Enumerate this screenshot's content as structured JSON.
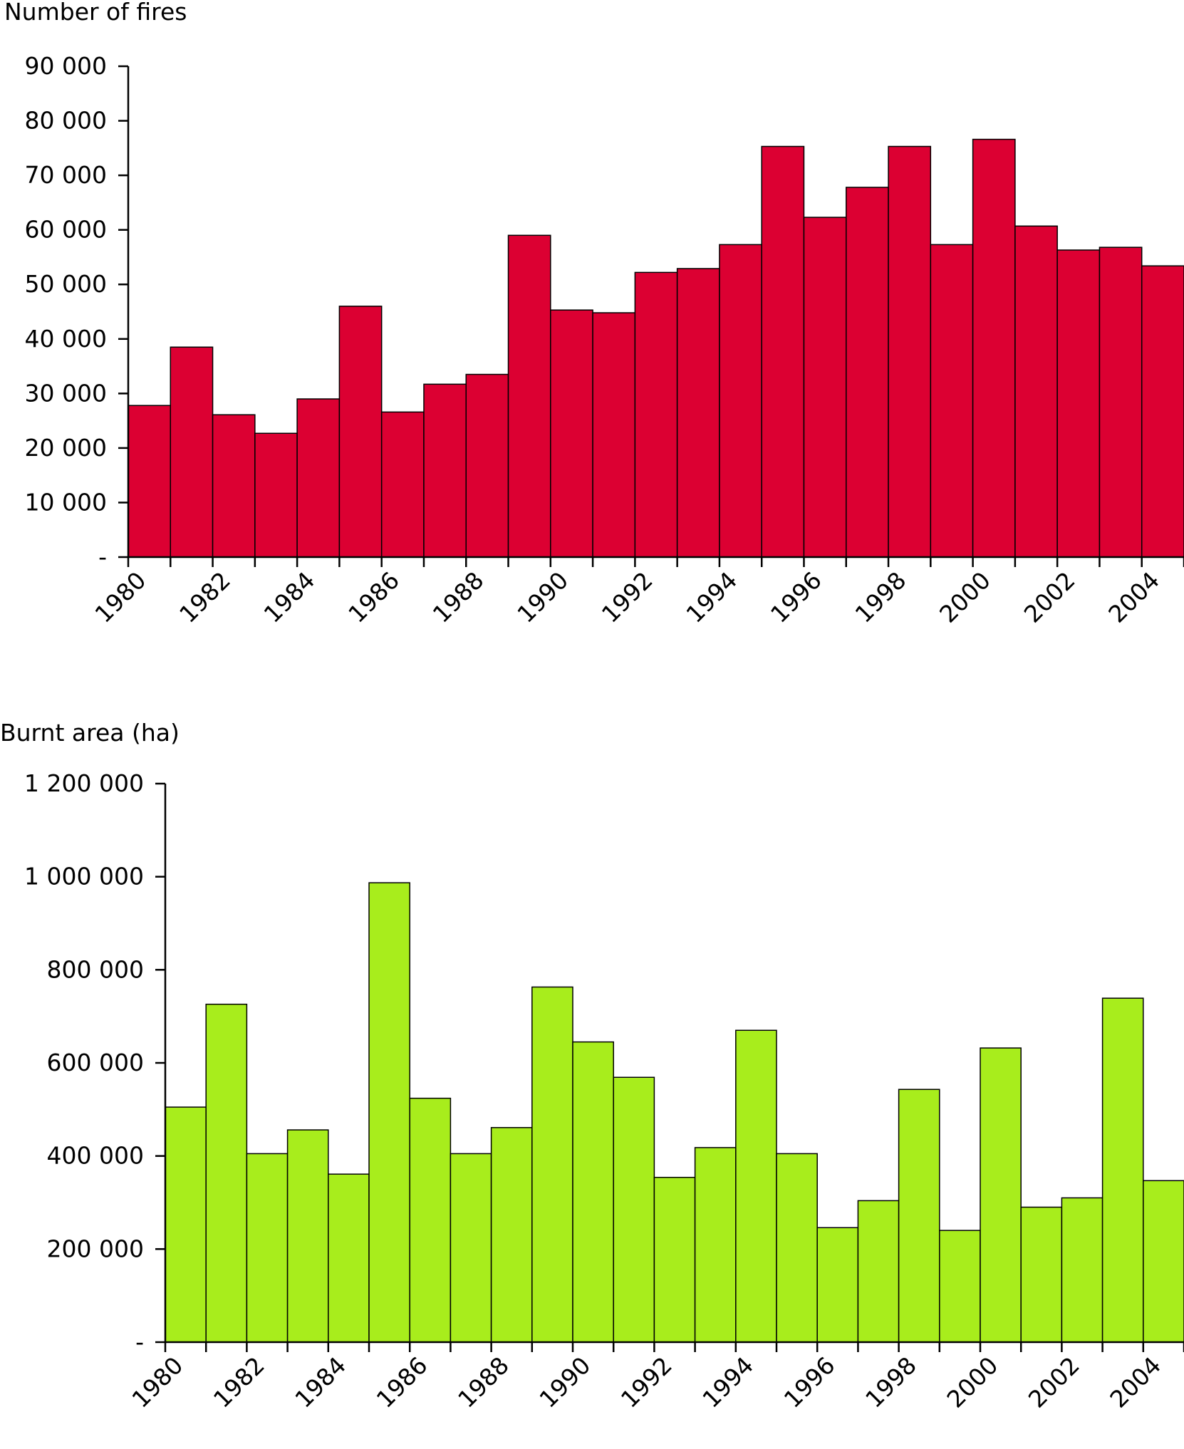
{
  "chart_data": [
    {
      "type": "bar",
      "ylabel": "Number of fires",
      "xlabel": "",
      "categories": [
        "1980",
        "1981",
        "1982",
        "1983",
        "1984",
        "1985",
        "1986",
        "1987",
        "1988",
        "1989",
        "1990",
        "1991",
        "1992",
        "1993",
        "1994",
        "1995",
        "1996",
        "1997",
        "1998",
        "1999",
        "2000",
        "2001",
        "2002",
        "2003",
        "2004"
      ],
      "x_tick_labels": [
        "1980",
        "1982",
        "1984",
        "1986",
        "1988",
        "1990",
        "1992",
        "1994",
        "1996",
        "1998",
        "2000",
        "2002",
        "2004"
      ],
      "values": [
        27800,
        38500,
        26100,
        22700,
        29000,
        46000,
        26600,
        31700,
        33500,
        59000,
        45300,
        44800,
        52200,
        52900,
        57300,
        75300,
        62300,
        67800,
        75300,
        57300,
        76600,
        60700,
        56300,
        56800,
        53400
      ],
      "ylim": [
        0,
        90000
      ],
      "y_ticks": [
        0,
        10000,
        20000,
        30000,
        40000,
        50000,
        60000,
        70000,
        80000,
        90000
      ],
      "y_tick_labels": [
        "-",
        "10 000",
        "20 000",
        "30 000",
        "40 000",
        "50 000",
        "60 000",
        "70 000",
        "80 000",
        "90 000"
      ],
      "bar_color": "#dc0032",
      "grid": false
    },
    {
      "type": "bar",
      "ylabel": "Burnt area (ha)",
      "xlabel": "",
      "categories": [
        "1980",
        "1981",
        "1982",
        "1983",
        "1984",
        "1985",
        "1986",
        "1987",
        "1988",
        "1989",
        "1990",
        "1991",
        "1992",
        "1993",
        "1994",
        "1995",
        "1996",
        "1997",
        "1998",
        "1999",
        "2000",
        "2001",
        "2002",
        "2003",
        "2004"
      ],
      "x_tick_labels": [
        "1980",
        "1982",
        "1984",
        "1986",
        "1988",
        "1990",
        "1992",
        "1994",
        "1996",
        "1998",
        "2000",
        "2002",
        "2004"
      ],
      "values": [
        505000,
        726000,
        405000,
        456000,
        361000,
        987000,
        524000,
        405000,
        461000,
        763000,
        645000,
        569000,
        354000,
        418000,
        670000,
        405000,
        246000,
        304000,
        543000,
        240000,
        632000,
        290000,
        310000,
        739000,
        347000
      ],
      "ylim": [
        0,
        1200000
      ],
      "y_ticks": [
        0,
        200000,
        400000,
        600000,
        800000,
        1000000,
        1200000
      ],
      "y_tick_labels": [
        "-",
        "200 000",
        "400 000",
        "600 000",
        "800 000",
        "1 000 000",
        "1 200 000"
      ],
      "bar_color": "#a8ed1c",
      "grid": false
    }
  ]
}
